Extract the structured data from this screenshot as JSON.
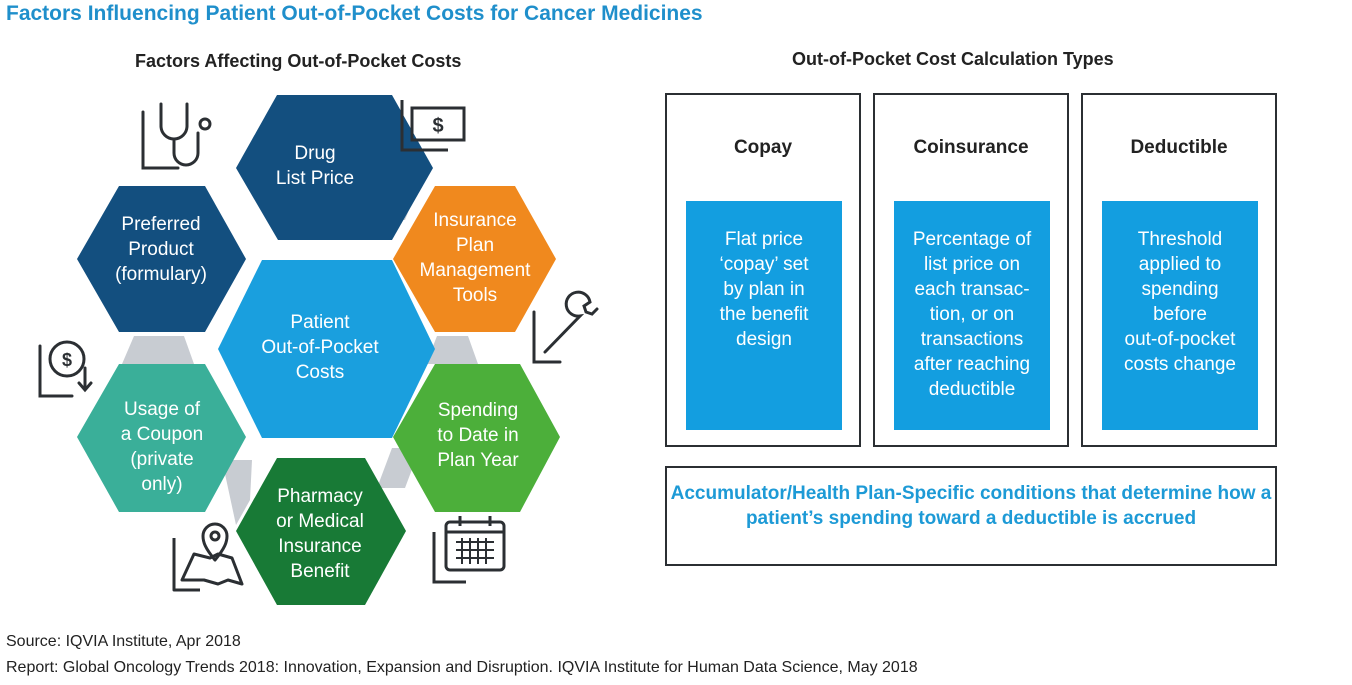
{
  "title": "Factors Influencing Patient Out-of-Pocket Costs for Cancer Medicines",
  "left_heading": "Factors Affecting Out-of-Pocket Costs",
  "right_heading": "Out-of-Pocket Cost Calculation Types",
  "colors": {
    "title": "#1f8fcb",
    "navy": "#134f7f",
    "light_blue": "#1a9fde",
    "orange": "#f0891e",
    "green": "#4caf3a",
    "dark_green": "#187a36",
    "teal": "#3aaf99",
    "connector_gray": "#c8ccd2",
    "box_fill": "#139ee0"
  },
  "hexagons": {
    "center": {
      "lines": [
        "Patient",
        "Out-of-Pocket",
        "Costs"
      ],
      "color": "#1a9fde"
    },
    "drug_price": {
      "lines": [
        "Drug",
        "List Price"
      ],
      "color": "#134f7f",
      "icon": "dollar-bill-icon"
    },
    "insurance_tools": {
      "lines": [
        "Insurance",
        "Plan",
        "Management",
        "Tools"
      ],
      "color": "#f0891e",
      "icon": "wrench-icon"
    },
    "spending": {
      "lines": [
        "Spending",
        "to Date in",
        "Plan Year"
      ],
      "color": "#4caf3a",
      "icon": "calendar-icon"
    },
    "pharmacy": {
      "lines": [
        "Pharmacy",
        "or Medical",
        "Insurance",
        "Benefit"
      ],
      "color": "#187a36",
      "icon": "map-pin-icon"
    },
    "coupon": {
      "lines": [
        "Usage of",
        "a Coupon",
        "(private",
        "only)"
      ],
      "color": "#3aaf99",
      "icon": "dollar-down-icon"
    },
    "preferred": {
      "lines": [
        "Preferred",
        "Product",
        "(formulary)"
      ],
      "color": "#134f7f",
      "icon": "stethoscope-icon"
    }
  },
  "cost_types": [
    {
      "heading": "Copay",
      "lines": [
        "Flat price",
        "‘copay’ set",
        "by plan in",
        "the benefit",
        "design"
      ]
    },
    {
      "heading": "Coinsurance",
      "lines": [
        "Percentage of",
        "list price on",
        "each transac-",
        "tion, or on",
        "transactions",
        "after reaching",
        "deductible"
      ]
    },
    {
      "heading": "Deductible",
      "lines": [
        "Threshold",
        "applied to",
        "spending",
        "before",
        "out-of-pocket",
        "costs change"
      ]
    }
  ],
  "accumulator_text": "Accumulator/Health Plan-Specific conditions that determine how a patient’s spending toward a deductible is accrued",
  "source": "Source: IQVIA Institute, Apr 2018",
  "report": "Report: Global Oncology Trends 2018: Innovation, Expansion and Disruption. IQVIA Institute for Human Data Science, May 2018"
}
